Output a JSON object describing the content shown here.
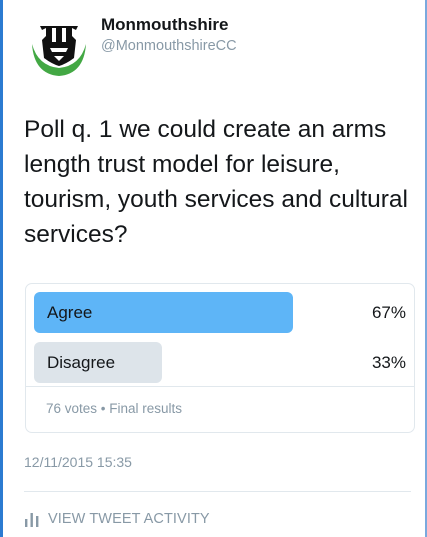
{
  "account": {
    "display_name": "Monmouthshire",
    "handle": "@MonmouthshireCC",
    "avatar_icon": "monmouthshire-logo-icon"
  },
  "tweet": {
    "text": "Poll q. 1 we could create an arms length trust model for leisure, tourism, youth services and cultural services?"
  },
  "poll": {
    "choices": [
      {
        "label": "Agree",
        "percent_text": "67%",
        "percent": 67,
        "winner": true
      },
      {
        "label": "Disagree",
        "percent_text": "33%",
        "percent": 33,
        "winner": false
      }
    ],
    "meta": "76 votes • Final results"
  },
  "timestamp": "12/11/2015 15:35",
  "activity": {
    "label": "VIEW TWEET ACTIVITY",
    "icon": "bar-chart-icon"
  },
  "colors": {
    "winner_bar": "#5eb5f7",
    "loser_bar": "#dde4ea",
    "logo_green": "#43a844",
    "muted_text": "#8899a6",
    "frame_border": "#2b7bd1"
  }
}
